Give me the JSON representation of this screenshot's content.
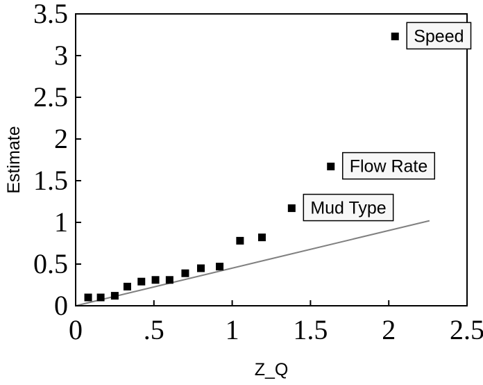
{
  "chart_data": {
    "type": "scatter",
    "title": "",
    "xlabel": "Z_Q",
    "ylabel": "Estimate",
    "xlim": [
      0,
      2.5
    ],
    "ylim": [
      0,
      3.5
    ],
    "grid": false,
    "legend": "none",
    "x_ticks": [
      {
        "value": 0,
        "label": "0"
      },
      {
        "value": 0.5,
        "label": ".5"
      },
      {
        "value": 1,
        "label": "1"
      },
      {
        "value": 1.5,
        "label": "1.5"
      },
      {
        "value": 2,
        "label": "2"
      },
      {
        "value": 2.5,
        "label": "2.5"
      }
    ],
    "y_ticks": [
      {
        "value": 0,
        "label": "0"
      },
      {
        "value": 0.5,
        "label": "0.5"
      },
      {
        "value": 1,
        "label": "1"
      },
      {
        "value": 1.5,
        "label": "1.5"
      },
      {
        "value": 2,
        "label": "2"
      },
      {
        "value": 2.5,
        "label": "2.5"
      },
      {
        "value": 3,
        "label": "3"
      },
      {
        "value": 3.5,
        "label": "3.5"
      }
    ],
    "points": [
      {
        "x": 0.08,
        "y": 0.1
      },
      {
        "x": 0.16,
        "y": 0.1
      },
      {
        "x": 0.25,
        "y": 0.12
      },
      {
        "x": 0.33,
        "y": 0.23
      },
      {
        "x": 0.42,
        "y": 0.29
      },
      {
        "x": 0.51,
        "y": 0.31
      },
      {
        "x": 0.6,
        "y": 0.31
      },
      {
        "x": 0.7,
        "y": 0.39
      },
      {
        "x": 0.8,
        "y": 0.45
      },
      {
        "x": 0.92,
        "y": 0.47
      },
      {
        "x": 1.05,
        "y": 0.78
      },
      {
        "x": 1.19,
        "y": 0.82
      },
      {
        "x": 1.38,
        "y": 1.17
      },
      {
        "x": 1.63,
        "y": 1.67
      },
      {
        "x": 2.04,
        "y": 3.23
      }
    ],
    "reference_line": {
      "x": [
        0,
        2.26
      ],
      "y": [
        0,
        1.02
      ],
      "color": "#808080"
    },
    "annotations": [
      {
        "text": "Mud Type",
        "x": 1.38,
        "y": 1.17
      },
      {
        "text": "Flow Rate",
        "x": 1.63,
        "y": 1.67
      },
      {
        "text": "Speed",
        "x": 2.04,
        "y": 3.23
      }
    ],
    "colors": {
      "points": "#000000",
      "reference_line": "#808080",
      "axis": "#000000",
      "label_box_fill": "#f7f7f7"
    }
  }
}
